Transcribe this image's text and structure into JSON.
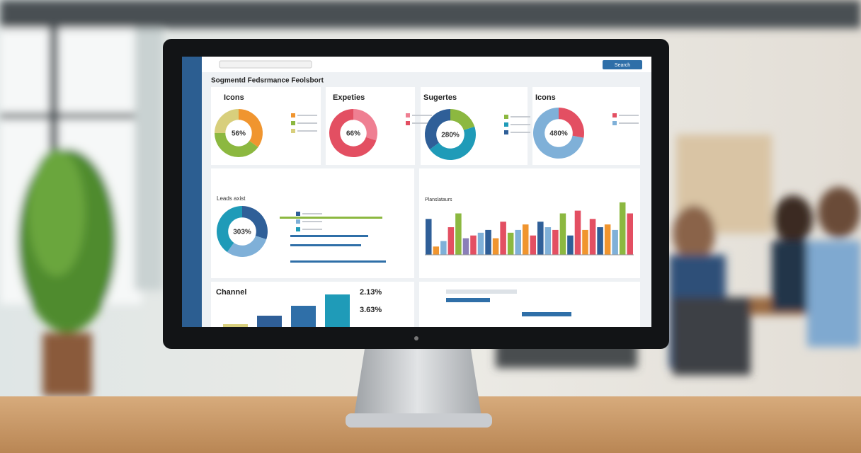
{
  "header": {
    "title": "Sogmentd Fedsrmance Feolsbort",
    "search": "Search"
  },
  "donuts": [
    {
      "title": "Icons",
      "center_label": "56%",
      "segments": [
        {
          "value": 35,
          "color": "#f0952f"
        },
        {
          "value": 40,
          "color": "#8cb840"
        },
        {
          "value": 25,
          "color": "#d8cf7c"
        }
      ]
    },
    {
      "title": "Expeties",
      "center_label": "66%",
      "segments": [
        {
          "value": 30,
          "color": "#ef7f92"
        },
        {
          "value": 70,
          "color": "#e34f62"
        }
      ]
    },
    {
      "title": "Sugertes",
      "center_label": "280%",
      "segments": [
        {
          "value": 20,
          "color": "#8cb840"
        },
        {
          "value": 45,
          "color": "#1f9bb8"
        },
        {
          "value": 35,
          "color": "#2f5f98"
        }
      ]
    },
    {
      "title": "Icons",
      "center_label": "480%",
      "segments": [
        {
          "value": 28,
          "color": "#e34f62"
        },
        {
          "value": 72,
          "color": "#7fb0d8"
        }
      ]
    },
    {
      "title": "Leads axist",
      "center_label": "303%",
      "segments": [
        {
          "value": 30,
          "color": "#2f5f98"
        },
        {
          "value": 30,
          "color": "#7fb0d8"
        },
        {
          "value": 40,
          "color": "#1f9bb8"
        }
      ]
    }
  ],
  "bar_chart": {
    "title": "Planslataurs",
    "ylim": [
      0,
      100
    ],
    "values": [
      65,
      15,
      25,
      50,
      75,
      30,
      35,
      40,
      45,
      30,
      60,
      40,
      45,
      55,
      35,
      60,
      50,
      45,
      75,
      35,
      80,
      45,
      65,
      50,
      55,
      45,
      95,
      75
    ],
    "colors": [
      "#2f5f98",
      "#f0952f",
      "#7fb0d8",
      "#e34f62",
      "#8cb840",
      "#8a7fb8",
      "#e34f62",
      "#7fb0d8",
      "#2f5f98",
      "#f0952f",
      "#e34f62",
      "#8cb840",
      "#7fb0d8",
      "#f0952f",
      "#e34f62",
      "#2f5f98",
      "#7fb0d8",
      "#e34f62",
      "#8cb840",
      "#2f5f98",
      "#e34f62",
      "#f0952f",
      "#e34f62",
      "#2f5f98",
      "#f0952f",
      "#7fb0d8",
      "#8cb840",
      "#e34f62"
    ]
  },
  "channel": {
    "title": "Channel",
    "ylim": [
      0,
      60
    ],
    "values": [
      4,
      16,
      30,
      46
    ],
    "colors": [
      "#d8cf7c",
      "#2f5f98",
      "#2f6fa8",
      "#1f9bb8"
    ]
  },
  "stats": [
    "2.13%",
    "3.63%"
  ]
}
